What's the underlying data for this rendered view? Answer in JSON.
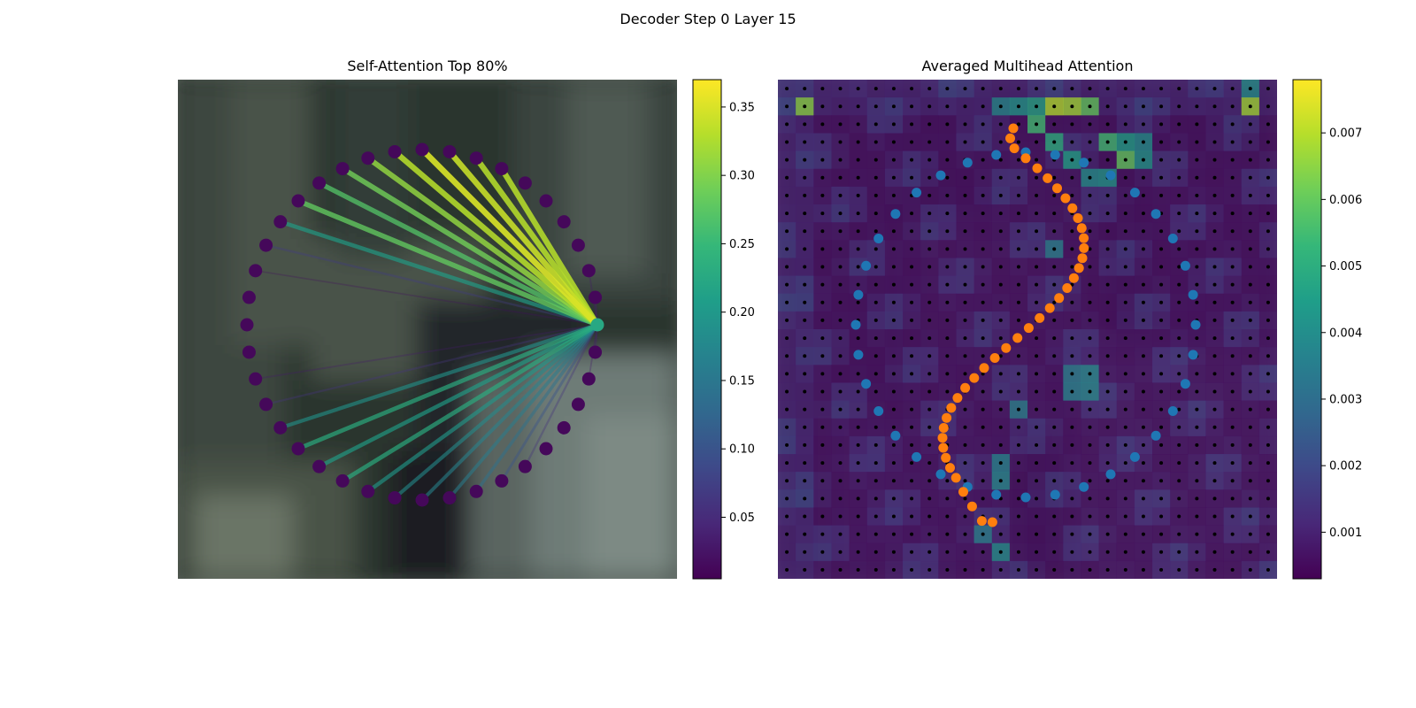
{
  "figure": {
    "suptitle": "Decoder Step 0 Layer 15"
  },
  "colors": {
    "viridis": [
      "#440154",
      "#482878",
      "#3e4989",
      "#31688e",
      "#26828e",
      "#1f9e89",
      "#35b779",
      "#6ece58",
      "#b5de2b",
      "#fde725"
    ],
    "blue_points": "#1f77b4",
    "orange_points": "#ff7f0e",
    "grid_dots": "#000000"
  },
  "chart_data": [
    {
      "type": "network",
      "title": "Self-Attention Top 80%",
      "background": "blurred photo",
      "node_count": 40,
      "query_node": 0,
      "node_layout": "circle",
      "edges": [
        {
          "to": 1,
          "weight": 0.04
        },
        {
          "to": 2,
          "weight": 0.03
        },
        {
          "to": 7,
          "weight": 0.33
        },
        {
          "to": 8,
          "weight": 0.33
        },
        {
          "to": 9,
          "weight": 0.34
        },
        {
          "to": 10,
          "weight": 0.35
        },
        {
          "to": 11,
          "weight": 0.33
        },
        {
          "to": 12,
          "weight": 0.31
        },
        {
          "to": 13,
          "weight": 0.29
        },
        {
          "to": 14,
          "weight": 0.27
        },
        {
          "to": 15,
          "weight": 0.28
        },
        {
          "to": 16,
          "weight": 0.21
        },
        {
          "to": 17,
          "weight": 0.07
        },
        {
          "to": 18,
          "weight": 0.02
        },
        {
          "to": 22,
          "weight": 0.03
        },
        {
          "to": 23,
          "weight": 0.06
        },
        {
          "to": 24,
          "weight": 0.19
        },
        {
          "to": 25,
          "weight": 0.23
        },
        {
          "to": 26,
          "weight": 0.21
        },
        {
          "to": 27,
          "weight": 0.23
        },
        {
          "to": 28,
          "weight": 0.2
        },
        {
          "to": 29,
          "weight": 0.18
        },
        {
          "to": 30,
          "weight": 0.17
        },
        {
          "to": 31,
          "weight": 0.16
        },
        {
          "to": 32,
          "weight": 0.14
        },
        {
          "to": 33,
          "weight": 0.1
        },
        {
          "to": 34,
          "weight": 0.06
        },
        {
          "to": 38,
          "weight": 0.03
        },
        {
          "to": 39,
          "weight": 0.04
        }
      ],
      "colorbar": {
        "range": [
          0.005,
          0.37
        ],
        "ticks": [
          "0.05",
          "0.10",
          "0.15",
          "0.20",
          "0.25",
          "0.30",
          "0.35"
        ]
      }
    },
    {
      "type": "heatmap",
      "title": "Averaged Multihead Attention",
      "grid_size": 28,
      "hot_cells": [
        {
          "row": 1,
          "col": 1,
          "value": 0.0065
        },
        {
          "row": 0,
          "col": 26,
          "value": 0.004
        },
        {
          "row": 1,
          "col": 26,
          "value": 0.0068
        },
        {
          "row": 1,
          "col": 15,
          "value": 0.007
        },
        {
          "row": 1,
          "col": 16,
          "value": 0.0068
        },
        {
          "row": 1,
          "col": 17,
          "value": 0.006
        },
        {
          "row": 1,
          "col": 14,
          "value": 0.0047
        },
        {
          "row": 1,
          "col": 13,
          "value": 0.0042
        },
        {
          "row": 1,
          "col": 12,
          "value": 0.0038
        },
        {
          "row": 2,
          "col": 14,
          "value": 0.0055
        },
        {
          "row": 3,
          "col": 15,
          "value": 0.005
        },
        {
          "row": 3,
          "col": 18,
          "value": 0.0055
        },
        {
          "row": 3,
          "col": 19,
          "value": 0.0045
        },
        {
          "row": 3,
          "col": 20,
          "value": 0.004
        },
        {
          "row": 4,
          "col": 19,
          "value": 0.006
        },
        {
          "row": 4,
          "col": 20,
          "value": 0.0042
        },
        {
          "row": 4,
          "col": 16,
          "value": 0.0045
        },
        {
          "row": 5,
          "col": 17,
          "value": 0.004
        },
        {
          "row": 5,
          "col": 18,
          "value": 0.0042
        },
        {
          "row": 9,
          "col": 15,
          "value": 0.0035
        },
        {
          "row": 16,
          "col": 16,
          "value": 0.0035
        },
        {
          "row": 16,
          "col": 17,
          "value": 0.0038
        },
        {
          "row": 17,
          "col": 16,
          "value": 0.0036
        },
        {
          "row": 17,
          "col": 17,
          "value": 0.0038
        },
        {
          "row": 18,
          "col": 13,
          "value": 0.0035
        },
        {
          "row": 21,
          "col": 12,
          "value": 0.0036
        },
        {
          "row": 22,
          "col": 12,
          "value": 0.0038
        },
        {
          "row": 25,
          "col": 11,
          "value": 0.0035
        },
        {
          "row": 26,
          "col": 12,
          "value": 0.004
        }
      ],
      "series": [
        {
          "name": "",
          "color": "blue_points",
          "shape": "ellipse",
          "count": 36
        },
        {
          "name": "",
          "color": "orange_points",
          "shape": "s-curve",
          "count": 40
        }
      ],
      "colorbar": {
        "range": [
          0.0003,
          0.0078
        ],
        "ticks": [
          "0.001",
          "0.002",
          "0.003",
          "0.004",
          "0.005",
          "0.006",
          "0.007"
        ]
      }
    }
  ]
}
